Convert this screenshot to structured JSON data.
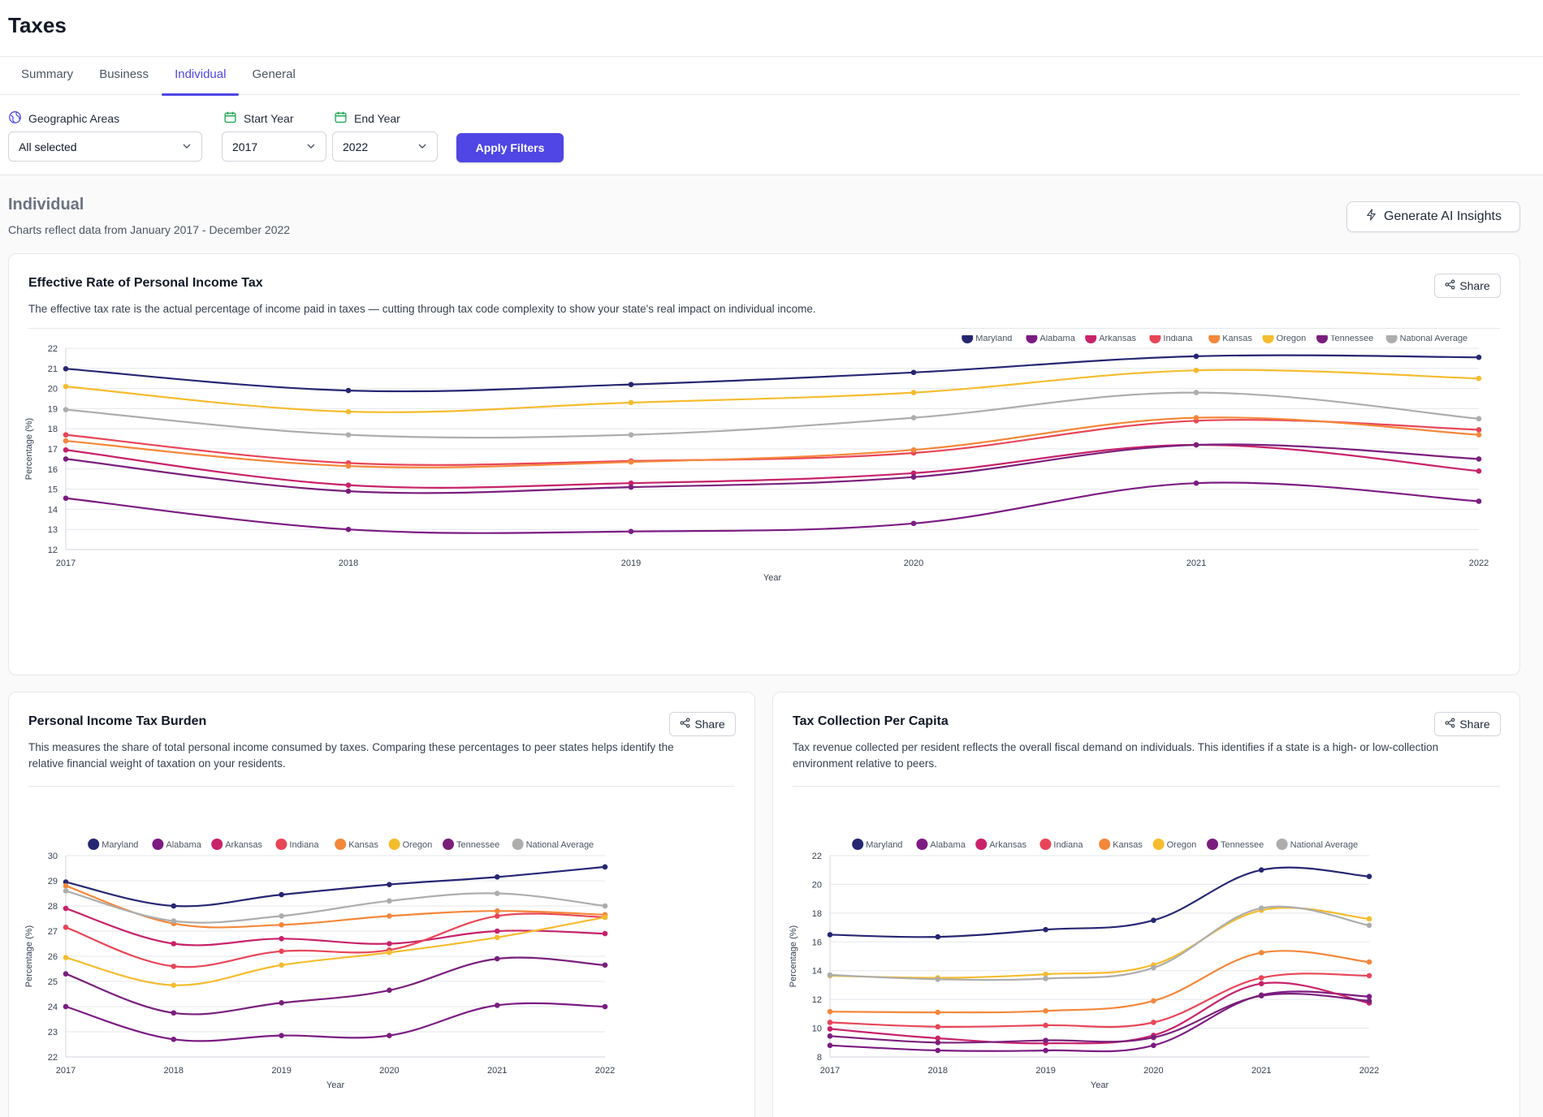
{
  "page": {
    "title": "Taxes"
  },
  "tabs": [
    "Summary",
    "Business",
    "Individual",
    "General"
  ],
  "active_tab": "Individual",
  "filters": {
    "geo_label": "Geographic Areas",
    "geo_value": "All selected",
    "start_label": "Start Year",
    "start_value": "2017",
    "end_label": "End Year",
    "end_value": "2022",
    "apply_label": "Apply Filters"
  },
  "section": {
    "title": "Individual",
    "subtitle": "Charts reflect data from January 2017 - December 2022",
    "ai_button": "Generate AI Insights"
  },
  "share_label": "Share",
  "series_colors": {
    "Maryland": "#262673",
    "Alabama": "#7b1b82",
    "Arkansas": "#c8226a",
    "Indiana": "#e84557",
    "Kansas": "#f4873a",
    "Oregon": "#f5bc2e",
    "Tennessee": "#7a1e7c",
    "National Average": "#adadad"
  },
  "cards": [
    {
      "title": "Effective Rate of Personal Income Tax",
      "description": "The effective tax rate is the actual percentage of income paid in taxes — cutting through tax code complexity to show your state's real impact on individual income."
    },
    {
      "title": "Personal Income Tax Burden",
      "description": "This measures the share of total personal income consumed by taxes. Comparing these percentages to peer states helps identify the relative financial weight of taxation on your residents."
    },
    {
      "title": "Tax Collection Per Capita",
      "description": "Tax revenue collected per resident reflects the overall fiscal demand on individuals. This identifies if a state is a high- or low-collection environment relative to peers."
    }
  ],
  "chart_data": [
    {
      "type": "line",
      "x": [
        2017,
        2018,
        2019,
        2020,
        2021,
        2022
      ],
      "xlabel": "Year",
      "ylabel": "Percentage (%)",
      "ylim": [
        12,
        22
      ],
      "yticks": [
        12,
        13,
        14,
        15,
        16,
        17,
        18,
        19,
        20,
        21,
        22
      ],
      "legend": "top-right",
      "grid": true,
      "series": [
        {
          "name": "Maryland",
          "values": [
            20.98,
            19.9,
            20.2,
            20.8,
            21.6,
            21.55
          ]
        },
        {
          "name": "Alabama",
          "values": [
            14.55,
            13.0,
            12.9,
            13.3,
            15.3,
            14.4
          ]
        },
        {
          "name": "Arkansas",
          "values": [
            16.95,
            15.2,
            15.3,
            15.8,
            17.2,
            15.9
          ]
        },
        {
          "name": "Indiana",
          "values": [
            17.7,
            16.3,
            16.4,
            16.8,
            18.4,
            17.95
          ]
        },
        {
          "name": "Kansas",
          "values": [
            17.4,
            16.15,
            16.35,
            16.95,
            18.55,
            17.7
          ]
        },
        {
          "name": "Oregon",
          "values": [
            20.1,
            18.85,
            19.3,
            19.8,
            20.9,
            20.5
          ]
        },
        {
          "name": "Tennessee",
          "values": [
            16.5,
            14.9,
            15.1,
            15.6,
            17.2,
            16.5
          ]
        },
        {
          "name": "National Average",
          "values": [
            18.95,
            17.7,
            17.7,
            18.55,
            19.8,
            18.5
          ]
        }
      ]
    },
    {
      "type": "line",
      "x": [
        2017,
        2018,
        2019,
        2020,
        2021,
        2022
      ],
      "xlabel": "Year",
      "ylabel": "Percentage (%)",
      "ylim": [
        22,
        30
      ],
      "yticks": [
        22,
        23,
        24,
        25,
        26,
        27,
        28,
        29,
        30
      ],
      "legend": "top-right",
      "grid": true,
      "series": [
        {
          "name": "Maryland",
          "values": [
            28.95,
            28.0,
            28.45,
            28.85,
            29.15,
            29.55
          ]
        },
        {
          "name": "Alabama",
          "values": [
            24.0,
            22.7,
            22.85,
            22.85,
            24.05,
            24.0
          ]
        },
        {
          "name": "Arkansas",
          "values": [
            27.9,
            26.5,
            26.7,
            26.5,
            27.0,
            26.9
          ]
        },
        {
          "name": "Indiana",
          "values": [
            27.15,
            25.6,
            26.2,
            26.25,
            27.6,
            27.55
          ]
        },
        {
          "name": "Kansas",
          "values": [
            28.8,
            27.3,
            27.25,
            27.6,
            27.8,
            27.65
          ]
        },
        {
          "name": "Oregon",
          "values": [
            25.95,
            24.85,
            25.65,
            26.15,
            26.75,
            27.55
          ]
        },
        {
          "name": "Tennessee",
          "values": [
            25.3,
            23.75,
            24.15,
            24.65,
            25.9,
            25.65
          ]
        },
        {
          "name": "National Average",
          "values": [
            28.6,
            27.4,
            27.6,
            28.2,
            28.5,
            28.0
          ]
        }
      ]
    },
    {
      "type": "line",
      "x": [
        2017,
        2018,
        2019,
        2020,
        2021,
        2022
      ],
      "xlabel": "Year",
      "ylabel": "Percentage (%)",
      "ylim": [
        8,
        22
      ],
      "yticks": [
        8,
        10,
        12,
        14,
        16,
        18,
        20,
        22
      ],
      "legend": "top-right",
      "grid": true,
      "series": [
        {
          "name": "Maryland",
          "values": [
            16.5,
            16.35,
            16.85,
            17.5,
            21.0,
            20.55
          ]
        },
        {
          "name": "Alabama",
          "values": [
            8.8,
            8.45,
            8.45,
            8.8,
            12.3,
            12.2
          ]
        },
        {
          "name": "Arkansas",
          "values": [
            9.95,
            9.3,
            8.95,
            9.5,
            13.1,
            11.75
          ]
        },
        {
          "name": "Indiana",
          "values": [
            10.4,
            10.1,
            10.2,
            10.4,
            13.5,
            13.65
          ]
        },
        {
          "name": "Kansas",
          "values": [
            11.15,
            11.1,
            11.2,
            11.9,
            15.25,
            14.6
          ]
        },
        {
          "name": "Oregon",
          "values": [
            13.65,
            13.5,
            13.75,
            14.4,
            18.2,
            17.6
          ]
        },
        {
          "name": "Tennessee",
          "values": [
            9.45,
            9.0,
            9.15,
            9.35,
            12.25,
            11.9
          ]
        },
        {
          "name": "National Average",
          "values": [
            13.7,
            13.4,
            13.45,
            14.2,
            18.35,
            17.15
          ]
        }
      ]
    }
  ]
}
